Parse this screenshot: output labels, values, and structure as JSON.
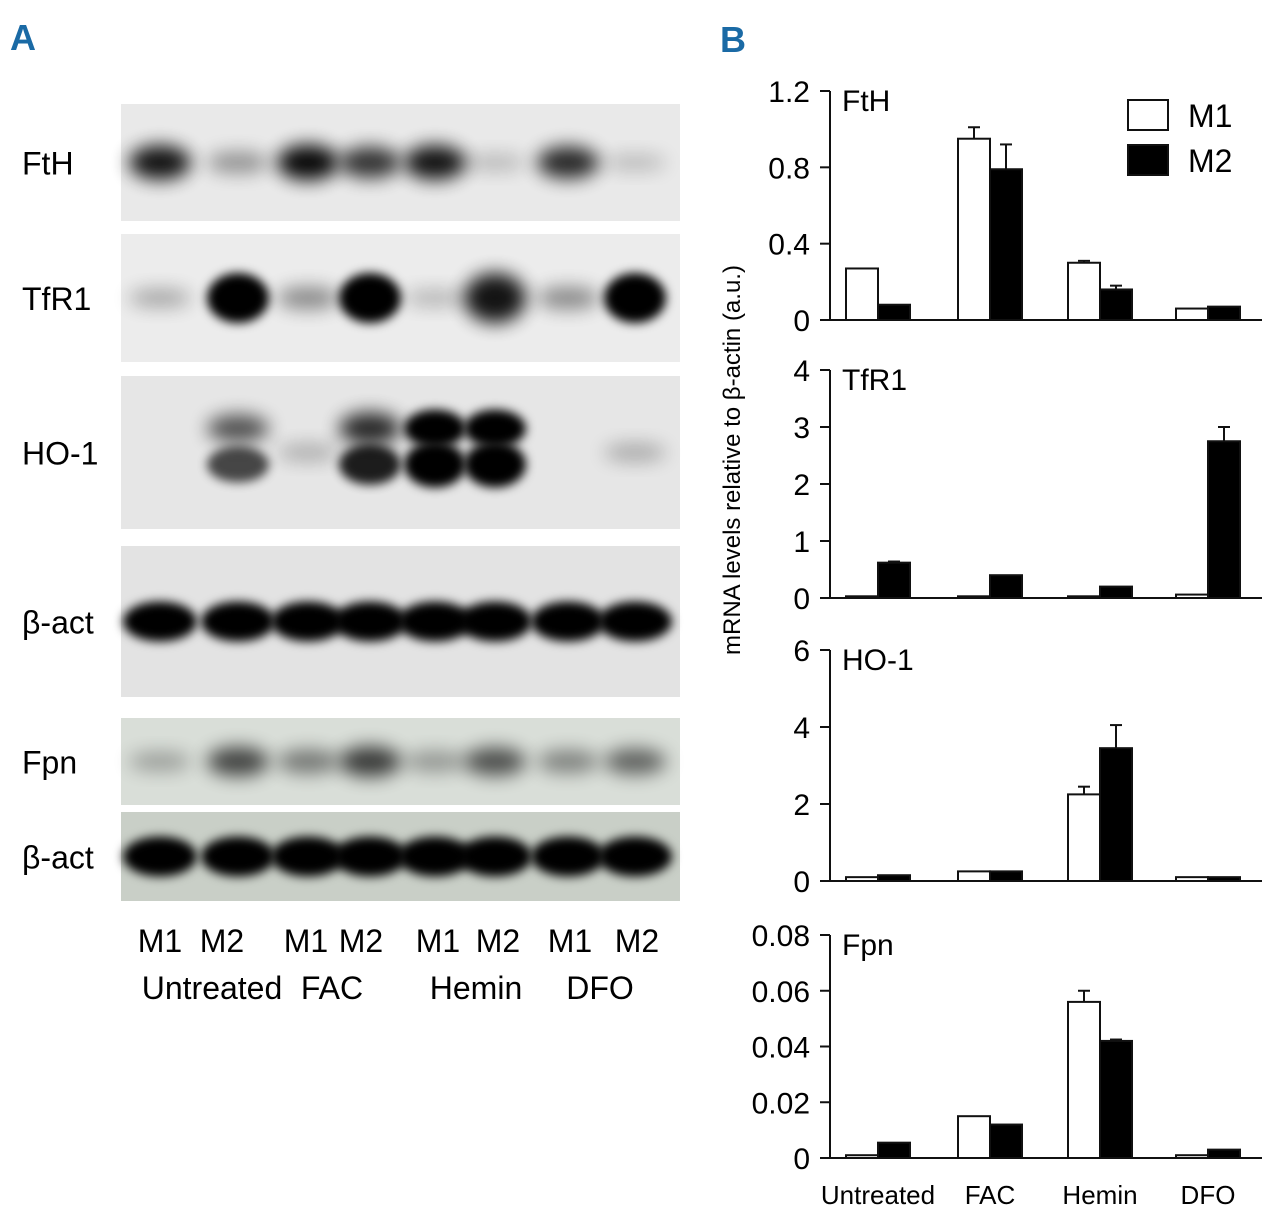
{
  "panel_a": {
    "letter": "A",
    "blots": [
      {
        "label": "FtH",
        "intensities": [
          0.85,
          0.25,
          0.9,
          0.7,
          0.85,
          0.06,
          0.75,
          0.05
        ]
      },
      {
        "label": "TfR1",
        "intensities": [
          0.15,
          0.98,
          0.3,
          0.98,
          0.08,
          0.85,
          0.3,
          1.0
        ]
      },
      {
        "label": "HO-1",
        "intensities": [
          0.0,
          0.55,
          0.1,
          0.75,
          1.0,
          1.0,
          0.0,
          0.12
        ]
      },
      {
        "label": "β-act",
        "intensities": [
          1.0,
          1.0,
          1.0,
          1.0,
          1.0,
          1.0,
          1.0,
          1.0
        ]
      },
      {
        "label": "Fpn",
        "intensities": [
          0.15,
          0.6,
          0.35,
          0.65,
          0.2,
          0.55,
          0.3,
          0.45
        ]
      },
      {
        "label": "β-act",
        "intensities": [
          1.0,
          1.0,
          1.0,
          1.0,
          1.0,
          1.0,
          1.0,
          1.0
        ]
      }
    ],
    "lane_labels": [
      "M1",
      "M2",
      "M1",
      "M2",
      "M1",
      "M2",
      "M1",
      "M2"
    ],
    "treatment_labels": [
      "Untreated",
      "FAC",
      "Hemin",
      "DFO"
    ]
  },
  "panel_b": {
    "letter": "B",
    "ylabel": "mRNA levels relative to β-actin (a.u.)",
    "legend": {
      "entries": [
        "M1",
        "M2"
      ],
      "placement": "top-right"
    }
  },
  "colors": {
    "m1_fill": "#ffffff",
    "m2_fill": "#000000",
    "axis": "#111111"
  },
  "chart_data": [
    {
      "type": "bar",
      "panel_label": "FtH",
      "categories": [
        "Untreated",
        "FAC",
        "Hemin",
        "DFO"
      ],
      "series": [
        {
          "name": "M1",
          "values": [
            0.27,
            0.95,
            0.3,
            0.06
          ],
          "errors": [
            0,
            0.06,
            0.01,
            0
          ]
        },
        {
          "name": "M2",
          "values": [
            0.08,
            0.79,
            0.16,
            0.07
          ],
          "errors": [
            0,
            0.13,
            0.02,
            0
          ]
        }
      ],
      "ylim": [
        0,
        1.2
      ],
      "yticks": [
        "0",
        "0.4",
        "0.8",
        "1.2"
      ],
      "ytick_values": [
        0,
        0.4,
        0.8,
        1.2
      ]
    },
    {
      "type": "bar",
      "panel_label": "TfR1",
      "categories": [
        "Untreated",
        "FAC",
        "Hemin",
        "DFO"
      ],
      "series": [
        {
          "name": "M1",
          "values": [
            0.03,
            0.03,
            0.03,
            0.06
          ],
          "errors": [
            0,
            0,
            0,
            0
          ]
        },
        {
          "name": "M2",
          "values": [
            0.62,
            0.4,
            0.2,
            2.75
          ],
          "errors": [
            0.02,
            0,
            0,
            0.25
          ]
        }
      ],
      "ylim": [
        0,
        4
      ],
      "yticks": [
        "0",
        "1",
        "2",
        "3",
        "4"
      ],
      "ytick_values": [
        0,
        1,
        2,
        3,
        4
      ]
    },
    {
      "type": "bar",
      "panel_label": "HO-1",
      "categories": [
        "Untreated",
        "FAC",
        "Hemin",
        "DFO"
      ],
      "series": [
        {
          "name": "M1",
          "values": [
            0.1,
            0.25,
            2.25,
            0.1
          ],
          "errors": [
            0,
            0,
            0.2,
            0
          ]
        },
        {
          "name": "M2",
          "values": [
            0.15,
            0.25,
            3.45,
            0.1
          ],
          "errors": [
            0,
            0,
            0.6,
            0
          ]
        }
      ],
      "ylim": [
        0,
        6
      ],
      "yticks": [
        "0",
        "2",
        "4",
        "6"
      ],
      "ytick_values": [
        0,
        2,
        4,
        6
      ]
    },
    {
      "type": "bar",
      "panel_label": "Fpn",
      "categories": [
        "Untreated",
        "FAC",
        "Hemin",
        "DFO"
      ],
      "series": [
        {
          "name": "M1",
          "values": [
            0.001,
            0.015,
            0.056,
            0.001
          ],
          "errors": [
            0,
            0,
            0.004,
            0
          ]
        },
        {
          "name": "M2",
          "values": [
            0.0055,
            0.012,
            0.042,
            0.003
          ],
          "errors": [
            0,
            0,
            0.0005,
            0
          ]
        }
      ],
      "ylim": [
        0,
        0.08
      ],
      "yticks": [
        "0",
        "0.02",
        "0.04",
        "0.06",
        "0.08"
      ],
      "ytick_values": [
        0,
        0.02,
        0.04,
        0.06,
        0.08
      ]
    }
  ]
}
